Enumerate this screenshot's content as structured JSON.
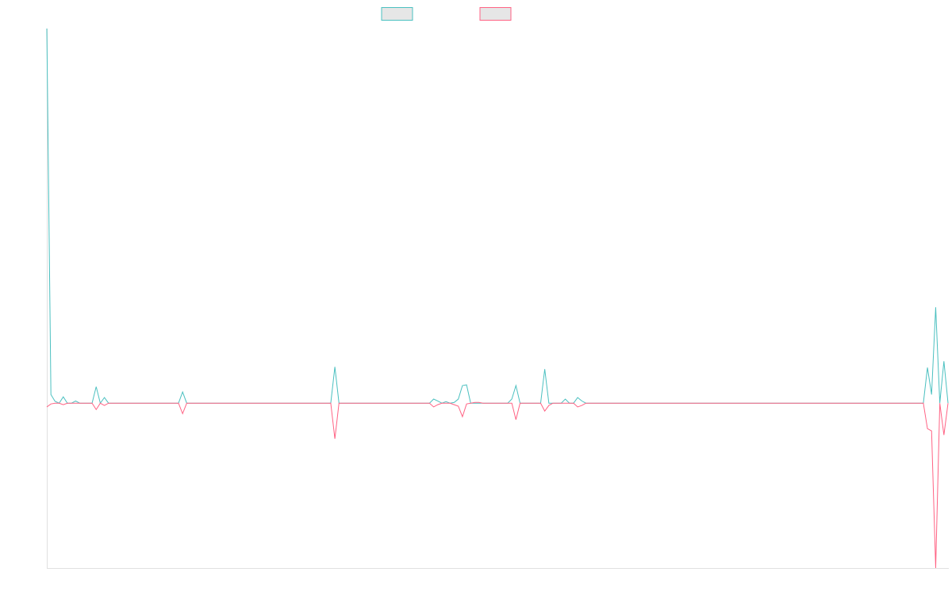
{
  "chart_data": {
    "type": "line",
    "ylim": [
      -0.44,
      1
    ],
    "series": [
      {
        "color": "#4bc0c0",
        "values": [
          1,
          0.023,
          0.005,
          0,
          0.017,
          0,
          0,
          0.006,
          0,
          0,
          0,
          0,
          0.044,
          0,
          0.015,
          0,
          0,
          0,
          0,
          0,
          0,
          0,
          0,
          0,
          0,
          0,
          0,
          0,
          0,
          0,
          0,
          0,
          0,
          0.03,
          0,
          0,
          0,
          0,
          0,
          0,
          0,
          0,
          0,
          0,
          0,
          0,
          0,
          0,
          0,
          0,
          0,
          0,
          0,
          0,
          0,
          0,
          0,
          0,
          0,
          0,
          0,
          0,
          0,
          0,
          0,
          0,
          0,
          0,
          0,
          0,
          0.097,
          0,
          0,
          0,
          0,
          0,
          0,
          0,
          0,
          0,
          0,
          0,
          0,
          0,
          0,
          0,
          0,
          0,
          0,
          0,
          0,
          0,
          0,
          0,
          0.011,
          0.006,
          0,
          0.004,
          0,
          0.002,
          0.011,
          0.047,
          0.049,
          0,
          0,
          0,
          0,
          0,
          0,
          0,
          0,
          0,
          0,
          0.011,
          0.047,
          0,
          0,
          0,
          0,
          0,
          0,
          0.091,
          0,
          0,
          0,
          0,
          0.011,
          0,
          0,
          0.015,
          0.006,
          0,
          0,
          0,
          0,
          0,
          0,
          0,
          0,
          0,
          0,
          0,
          0,
          0,
          0,
          0,
          0,
          0,
          0,
          0,
          0,
          0,
          0,
          0,
          0,
          0,
          0,
          0,
          0,
          0,
          0,
          0,
          0,
          0,
          0,
          0,
          0,
          0,
          0,
          0,
          0,
          0,
          0,
          0,
          0,
          0,
          0,
          0,
          0,
          0,
          0,
          0,
          0,
          0,
          0,
          0,
          0,
          0,
          0,
          0,
          0,
          0,
          0,
          0,
          0,
          0,
          0,
          0,
          0,
          0,
          0,
          0,
          0,
          0,
          0,
          0,
          0,
          0,
          0,
          0,
          0,
          0,
          0,
          0,
          0.095,
          0.023,
          0.256,
          0,
          0.112,
          0
        ]
      },
      {
        "color": "#ff6384",
        "values": [
          -0.01,
          -0.002,
          0,
          0,
          -0.004,
          0,
          0,
          0,
          0,
          0,
          0,
          0,
          -0.017,
          0,
          -0.006,
          0,
          0,
          0,
          0,
          0,
          0,
          0,
          0,
          0,
          0,
          0,
          0,
          0,
          0,
          0,
          0,
          0,
          0,
          -0.028,
          0,
          0,
          0,
          0,
          0,
          0,
          0,
          0,
          0,
          0,
          0,
          0,
          0,
          0,
          0,
          0,
          0,
          0,
          0,
          0,
          0,
          0,
          0,
          0,
          0,
          0,
          0,
          0,
          0,
          0,
          0,
          0,
          0,
          0,
          0,
          0,
          -0.095,
          0,
          0,
          0,
          0,
          0,
          0,
          0,
          0,
          0,
          0,
          0,
          0,
          0,
          0,
          0,
          0,
          0,
          0,
          0,
          0,
          0,
          0,
          0,
          -0.01,
          -0.004,
          0,
          0,
          0,
          -0.004,
          -0.008,
          -0.036,
          -0.002,
          0,
          0.002,
          0.002,
          0,
          0,
          0,
          0,
          0,
          0,
          0,
          0,
          -0.044,
          0,
          0,
          0,
          0,
          0,
          0,
          -0.021,
          -0.006,
          0,
          0,
          0,
          0,
          0,
          0,
          -0.01,
          -0.006,
          0,
          0,
          0,
          0,
          0,
          0,
          0,
          0,
          0,
          0,
          0,
          0,
          0,
          0,
          0,
          0,
          0,
          0,
          0,
          0,
          0,
          0,
          0,
          0,
          0,
          0,
          0,
          0,
          0,
          0,
          0,
          0,
          0,
          0,
          0,
          0,
          0,
          0,
          0,
          0,
          0,
          0,
          0,
          0,
          0,
          0,
          0,
          0,
          0,
          0,
          0,
          0,
          0,
          0,
          0,
          0,
          0,
          0,
          0,
          0,
          0,
          0,
          0,
          0,
          0,
          0,
          0,
          0,
          0,
          0,
          0,
          0,
          0,
          0,
          0,
          0,
          0,
          0,
          0,
          0,
          0,
          0,
          0,
          -0.068,
          -0.074,
          -0.44,
          0,
          -0.085,
          0
        ]
      }
    ]
  }
}
